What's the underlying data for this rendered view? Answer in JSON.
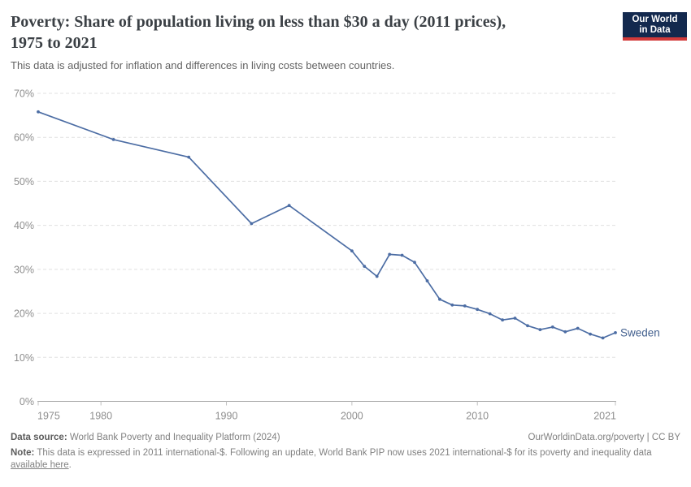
{
  "header": {
    "title": "Poverty: Share of population living on less than $30 a day (2011 prices), 1975 to 2021",
    "subtitle": "This data is adjusted for inflation and differences in living costs between countries.",
    "logo": {
      "line1": "Our World",
      "line2": "in Data"
    }
  },
  "chart_data": {
    "type": "line",
    "title": "Poverty: Share of population living on less than $30 a day (2011 prices), 1975 to 2021",
    "xlabel": "",
    "ylabel": "",
    "xlim": [
      1975,
      2021
    ],
    "ylim": [
      0,
      70
    ],
    "xticks": [
      1975,
      1980,
      1990,
      2000,
      2010,
      2021
    ],
    "yticks": [
      0,
      10,
      20,
      30,
      40,
      50,
      60,
      70
    ],
    "ytick_suffix": "%",
    "grid": "horizontal-dashed",
    "legend_position": "end-of-line",
    "series": [
      {
        "name": "Sweden",
        "x": [
          1975,
          1981,
          1987,
          1992,
          1995,
          2000,
          2001,
          2002,
          2003,
          2004,
          2005,
          2006,
          2007,
          2008,
          2009,
          2010,
          2011,
          2012,
          2013,
          2014,
          2015,
          2016,
          2017,
          2018,
          2019,
          2020,
          2021
        ],
        "values": [
          65.8,
          59.5,
          55.5,
          40.4,
          44.5,
          34.2,
          30.7,
          28.4,
          33.4,
          33.2,
          31.6,
          27.4,
          23.2,
          21.9,
          21.7,
          20.9,
          19.9,
          18.5,
          18.9,
          17.2,
          16.3,
          16.9,
          15.8,
          16.6,
          15.3,
          14.4,
          15.6
        ],
        "line_color": "#4c6da4",
        "label_color": "#44618f"
      }
    ],
    "colors": {
      "gridline": "#e0e0e0",
      "axis_line": "#a9a9a9",
      "tick_mark": "#c0c0c0",
      "axis_text": "#8e8e8e"
    }
  },
  "footer": {
    "datasource_label": "Data source:",
    "datasource_text": " World Bank Poverty and Inequality Platform (2024)",
    "rights": "OurWorldinData.org/poverty | CC BY",
    "note_label": "Note:",
    "note_before_link": " This data is expressed in 2011 international-$. Following an update, World Bank PIP now uses 2021 international-$ for its poverty and inequality data ",
    "note_link": "available here",
    "note_after_link": "."
  }
}
